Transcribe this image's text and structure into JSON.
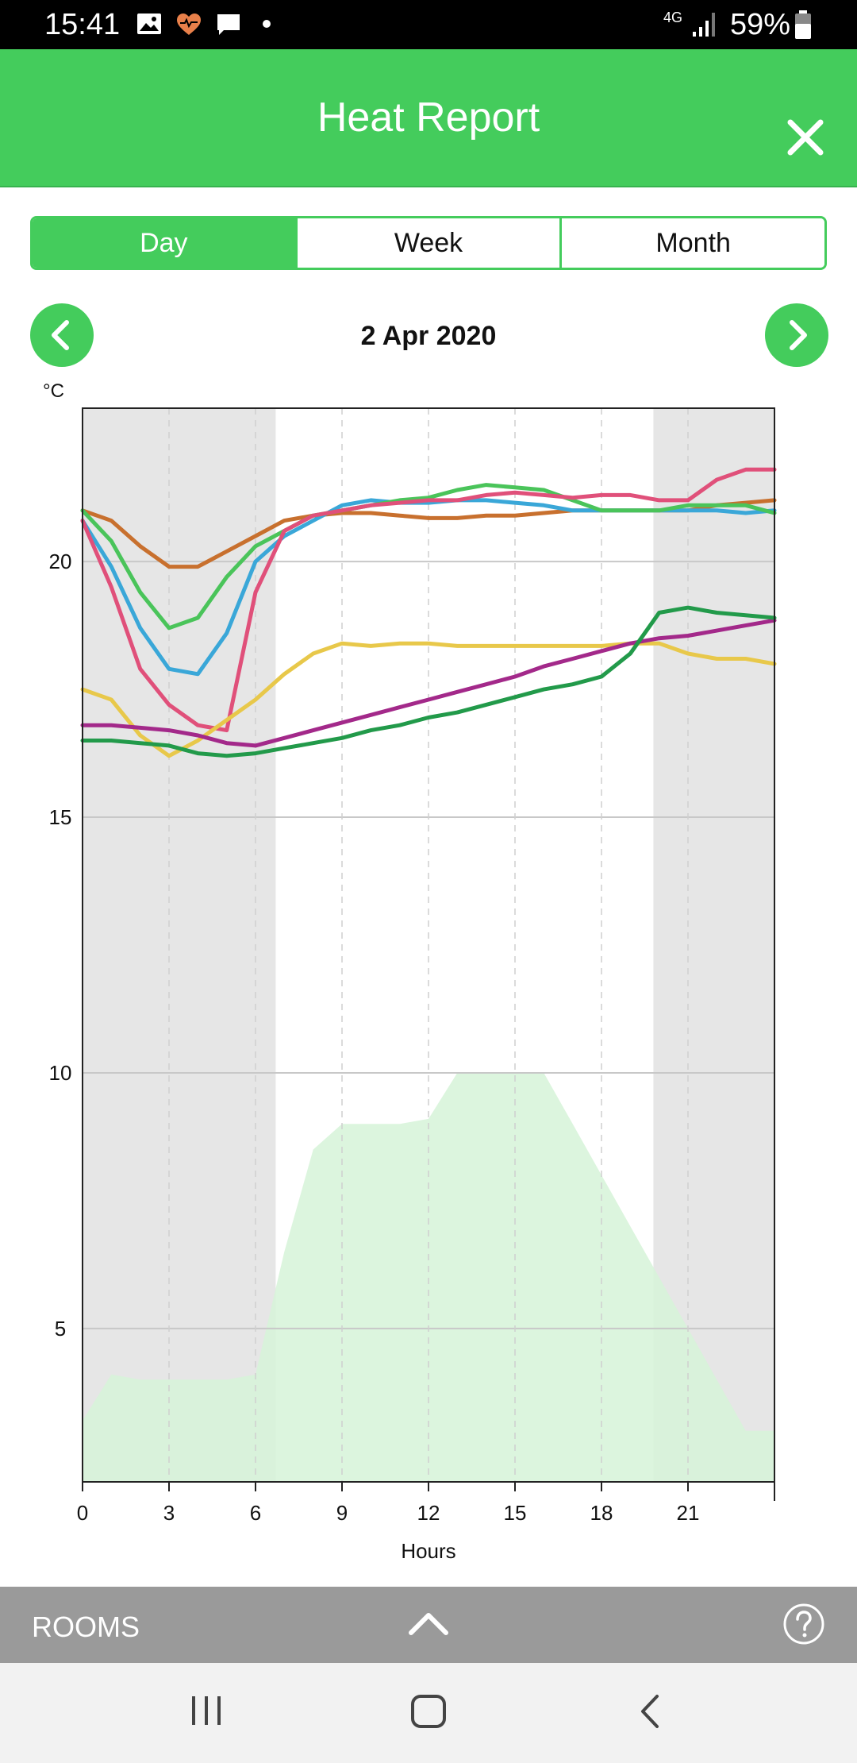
{
  "status_bar": {
    "time": "15:41",
    "network": "4G",
    "battery": "59%",
    "icons": [
      "image-icon",
      "heart-icon",
      "message-icon",
      "dot-icon",
      "signal-icon",
      "battery-icon"
    ]
  },
  "header": {
    "title": "Heat Report",
    "close_icon": "close-icon",
    "background": "#44cc5c"
  },
  "tabs": [
    {
      "label": "Day",
      "active": true
    },
    {
      "label": "Week",
      "active": false
    },
    {
      "label": "Month",
      "active": false
    }
  ],
  "date_nav": {
    "date": "2 Apr 2020",
    "prev_icon": "chevron-left-icon",
    "next_icon": "chevron-right-icon"
  },
  "chart_data": {
    "type": "line",
    "y_unit": "°C",
    "xlabel": "Hours",
    "xlim": [
      0,
      24
    ],
    "ylim": [
      2,
      23
    ],
    "x_ticks": [
      0,
      3,
      6,
      9,
      12,
      15,
      18,
      21
    ],
    "y_ticks": [
      5,
      10,
      15,
      20
    ],
    "grid": true,
    "shaded_hours": [
      [
        0,
        6.7
      ],
      [
        19.8,
        24
      ]
    ],
    "area": {
      "color": "#d6f3d8",
      "points": [
        [
          0,
          3.2
        ],
        [
          1,
          4.1
        ],
        [
          2,
          4.0
        ],
        [
          3,
          4.0
        ],
        [
          4,
          4.0
        ],
        [
          5,
          4.0
        ],
        [
          6,
          4.1
        ],
        [
          7,
          6.5
        ],
        [
          8,
          8.5
        ],
        [
          9,
          9.0
        ],
        [
          10,
          9.0
        ],
        [
          11,
          9.0
        ],
        [
          12,
          9.1
        ],
        [
          13,
          10.0
        ],
        [
          14,
          10.0
        ],
        [
          15,
          10.0
        ],
        [
          16,
          10.0
        ],
        [
          17,
          9.0
        ],
        [
          18,
          8.0
        ],
        [
          19,
          7.0
        ],
        [
          20,
          6.0
        ],
        [
          21,
          5.0
        ],
        [
          22,
          4.0
        ],
        [
          23,
          3.0
        ],
        [
          24,
          3.0
        ]
      ]
    },
    "series": [
      {
        "color": "#c8702e",
        "points": [
          [
            0,
            21.0
          ],
          [
            1,
            20.8
          ],
          [
            2,
            20.3
          ],
          [
            3,
            19.9
          ],
          [
            4,
            19.9
          ],
          [
            5,
            20.2
          ],
          [
            6,
            20.5
          ],
          [
            7,
            20.8
          ],
          [
            8,
            20.9
          ],
          [
            9,
            20.95
          ],
          [
            10,
            20.95
          ],
          [
            11,
            20.9
          ],
          [
            12,
            20.85
          ],
          [
            13,
            20.85
          ],
          [
            14,
            20.9
          ],
          [
            15,
            20.9
          ],
          [
            16,
            20.95
          ],
          [
            17,
            21.0
          ],
          [
            18,
            21.0
          ],
          [
            19,
            21.0
          ],
          [
            20,
            21.0
          ],
          [
            21,
            21.0
          ],
          [
            22,
            21.1
          ],
          [
            23,
            21.15
          ],
          [
            24,
            21.2
          ]
        ]
      },
      {
        "color": "#3aa7d8",
        "points": [
          [
            0,
            20.8
          ],
          [
            1,
            19.9
          ],
          [
            2,
            18.7
          ],
          [
            3,
            17.9
          ],
          [
            4,
            17.8
          ],
          [
            5,
            18.6
          ],
          [
            6,
            20.0
          ],
          [
            7,
            20.5
          ],
          [
            8,
            20.8
          ],
          [
            9,
            21.1
          ],
          [
            10,
            21.2
          ],
          [
            11,
            21.15
          ],
          [
            12,
            21.15
          ],
          [
            13,
            21.2
          ],
          [
            14,
            21.2
          ],
          [
            15,
            21.15
          ],
          [
            16,
            21.1
          ],
          [
            17,
            21.0
          ],
          [
            18,
            21.0
          ],
          [
            19,
            21.0
          ],
          [
            20,
            21.0
          ],
          [
            21,
            21.0
          ],
          [
            22,
            21.0
          ],
          [
            23,
            20.95
          ],
          [
            24,
            21.0
          ]
        ]
      },
      {
        "color": "#4ac45a",
        "points": [
          [
            0,
            21.0
          ],
          [
            1,
            20.4
          ],
          [
            2,
            19.4
          ],
          [
            3,
            18.7
          ],
          [
            4,
            18.9
          ],
          [
            5,
            19.7
          ],
          [
            6,
            20.3
          ],
          [
            7,
            20.6
          ],
          [
            8,
            20.9
          ],
          [
            9,
            21.0
          ],
          [
            10,
            21.1
          ],
          [
            11,
            21.2
          ],
          [
            12,
            21.25
          ],
          [
            13,
            21.4
          ],
          [
            14,
            21.5
          ],
          [
            15,
            21.45
          ],
          [
            16,
            21.4
          ],
          [
            17,
            21.2
          ],
          [
            18,
            21.0
          ],
          [
            19,
            21.0
          ],
          [
            20,
            21.0
          ],
          [
            21,
            21.1
          ],
          [
            22,
            21.1
          ],
          [
            23,
            21.1
          ],
          [
            24,
            20.95
          ]
        ]
      },
      {
        "color": "#e0507a",
        "points": [
          [
            0,
            20.8
          ],
          [
            1,
            19.5
          ],
          [
            2,
            17.9
          ],
          [
            3,
            17.2
          ],
          [
            4,
            16.8
          ],
          [
            5,
            16.7
          ],
          [
            6,
            19.4
          ],
          [
            7,
            20.6
          ],
          [
            8,
            20.9
          ],
          [
            9,
            21.0
          ],
          [
            10,
            21.1
          ],
          [
            11,
            21.15
          ],
          [
            12,
            21.2
          ],
          [
            13,
            21.2
          ],
          [
            14,
            21.3
          ],
          [
            15,
            21.35
          ],
          [
            16,
            21.3
          ],
          [
            17,
            21.25
          ],
          [
            18,
            21.3
          ],
          [
            19,
            21.3
          ],
          [
            20,
            21.2
          ],
          [
            21,
            21.2
          ],
          [
            22,
            21.6
          ],
          [
            23,
            21.8
          ],
          [
            24,
            21.8
          ]
        ]
      },
      {
        "color": "#e8c84a",
        "points": [
          [
            0,
            17.5
          ],
          [
            1,
            17.3
          ],
          [
            2,
            16.6
          ],
          [
            3,
            16.2
          ],
          [
            4,
            16.5
          ],
          [
            5,
            16.9
          ],
          [
            6,
            17.3
          ],
          [
            7,
            17.8
          ],
          [
            8,
            18.2
          ],
          [
            9,
            18.4
          ],
          [
            10,
            18.35
          ],
          [
            11,
            18.4
          ],
          [
            12,
            18.4
          ],
          [
            13,
            18.35
          ],
          [
            14,
            18.35
          ],
          [
            15,
            18.35
          ],
          [
            16,
            18.35
          ],
          [
            17,
            18.35
          ],
          [
            18,
            18.35
          ],
          [
            19,
            18.4
          ],
          [
            20,
            18.4
          ],
          [
            21,
            18.2
          ],
          [
            22,
            18.1
          ],
          [
            23,
            18.1
          ],
          [
            24,
            18.0
          ]
        ]
      },
      {
        "color": "#a3298a",
        "points": [
          [
            0,
            16.8
          ],
          [
            1,
            16.8
          ],
          [
            2,
            16.75
          ],
          [
            3,
            16.7
          ],
          [
            4,
            16.6
          ],
          [
            5,
            16.45
          ],
          [
            6,
            16.4
          ],
          [
            7,
            16.55
          ],
          [
            8,
            16.7
          ],
          [
            9,
            16.85
          ],
          [
            10,
            17.0
          ],
          [
            11,
            17.15
          ],
          [
            12,
            17.3
          ],
          [
            13,
            17.45
          ],
          [
            14,
            17.6
          ],
          [
            15,
            17.75
          ],
          [
            16,
            17.95
          ],
          [
            17,
            18.1
          ],
          [
            18,
            18.25
          ],
          [
            19,
            18.4
          ],
          [
            20,
            18.5
          ],
          [
            21,
            18.55
          ],
          [
            22,
            18.65
          ],
          [
            23,
            18.75
          ],
          [
            24,
            18.85
          ]
        ]
      },
      {
        "color": "#229a4a",
        "points": [
          [
            0,
            16.5
          ],
          [
            1,
            16.5
          ],
          [
            2,
            16.45
          ],
          [
            3,
            16.4
          ],
          [
            4,
            16.25
          ],
          [
            5,
            16.2
          ],
          [
            6,
            16.25
          ],
          [
            7,
            16.35
          ],
          [
            8,
            16.45
          ],
          [
            9,
            16.55
          ],
          [
            10,
            16.7
          ],
          [
            11,
            16.8
          ],
          [
            12,
            16.95
          ],
          [
            13,
            17.05
          ],
          [
            14,
            17.2
          ],
          [
            15,
            17.35
          ],
          [
            16,
            17.5
          ],
          [
            17,
            17.6
          ],
          [
            18,
            17.75
          ],
          [
            19,
            18.2
          ],
          [
            20,
            19.0
          ],
          [
            21,
            19.1
          ],
          [
            22,
            19.0
          ],
          [
            23,
            18.95
          ],
          [
            24,
            18.9
          ]
        ]
      }
    ]
  },
  "rooms_bar": {
    "label": "ROOMS",
    "expand_icon": "chevron-up-icon",
    "help_icon": "help-icon"
  },
  "system_nav": {
    "icons": [
      "recent-apps-icon",
      "home-icon",
      "back-icon"
    ]
  }
}
